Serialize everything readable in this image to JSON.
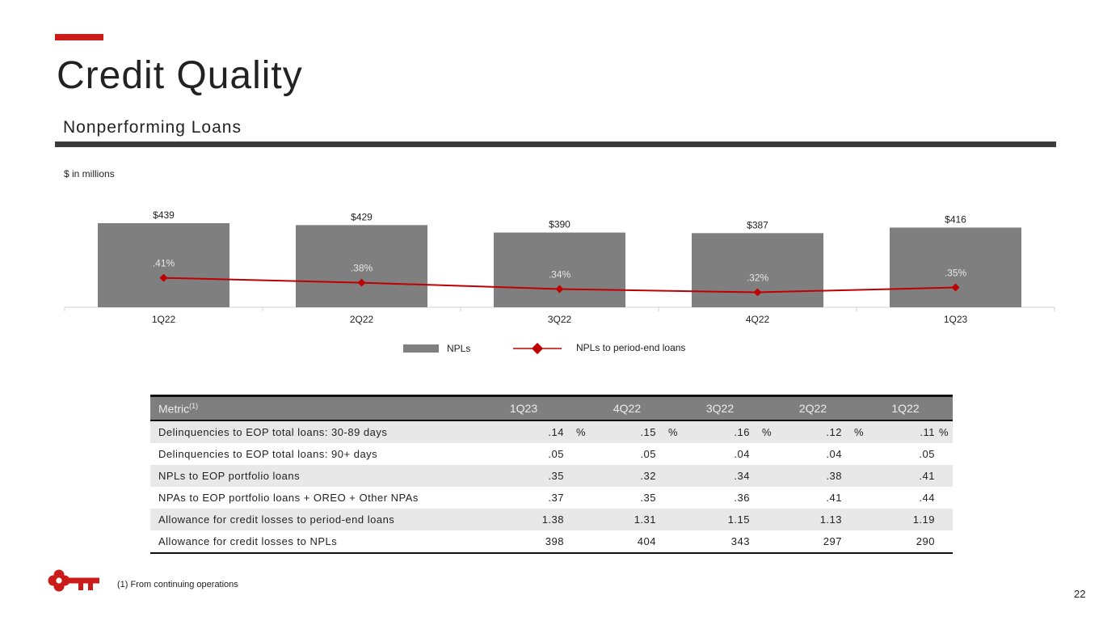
{
  "title": "Credit Quality",
  "subtitle": "Nonperforming Loans",
  "units_note": "$ in millions",
  "colors": {
    "accent": "#cc1b1b",
    "bar": "#7f7f7f",
    "line": "#c00000"
  },
  "chart_data": {
    "type": "bar",
    "title": "Nonperforming Loans",
    "categories": [
      "1Q22",
      "2Q22",
      "3Q22",
      "4Q22",
      "1Q23"
    ],
    "series": [
      {
        "name": "NPLs",
        "type": "bar",
        "values": [
          439,
          429,
          390,
          387,
          416
        ],
        "labels": [
          "$439",
          "$429",
          "$390",
          "$387",
          "$416"
        ]
      },
      {
        "name": "NPLs to period-end loans",
        "type": "line",
        "values": [
          0.41,
          0.38,
          0.34,
          0.32,
          0.35
        ],
        "labels": [
          ".41%",
          ".38%",
          ".34%",
          ".32%",
          ".35%"
        ]
      }
    ],
    "ylabel": "$ in millions",
    "legend": [
      "NPLs",
      "NPLs to period-end loans"
    ],
    "legend_position": "bottom"
  },
  "table": {
    "header_metric": "Metric",
    "header_sup": "(1)",
    "columns": [
      "1Q23",
      "4Q22",
      "3Q22",
      "2Q22",
      "1Q22"
    ],
    "rows": [
      {
        "label": "Delinquencies to EOP total loans: 30-89 days",
        "values": [
          ".14",
          ".15",
          ".16",
          ".12",
          ".11"
        ],
        "unit": "%"
      },
      {
        "label": "Delinquencies to EOP total loans: 90+ days",
        "values": [
          ".05",
          ".05",
          ".04",
          ".04",
          ".05"
        ],
        "unit": ""
      },
      {
        "label": "NPLs to EOP portfolio loans",
        "values": [
          ".35",
          ".32",
          ".34",
          ".38",
          ".41"
        ],
        "unit": ""
      },
      {
        "label": "NPAs to EOP portfolio loans + OREO + Other NPAs",
        "values": [
          ".37",
          ".35",
          ".36",
          ".41",
          ".44"
        ],
        "unit": ""
      },
      {
        "label": "Allowance for credit losses to period-end loans",
        "values": [
          "1.38",
          "1.31",
          "1.15",
          "1.13",
          "1.19"
        ],
        "unit": ""
      },
      {
        "label": "Allowance for credit losses to NPLs",
        "values": [
          "398",
          "404",
          "343",
          "297",
          "290"
        ],
        "unit": ""
      }
    ]
  },
  "footnote": "(1) From continuing operations",
  "page_number": "22"
}
